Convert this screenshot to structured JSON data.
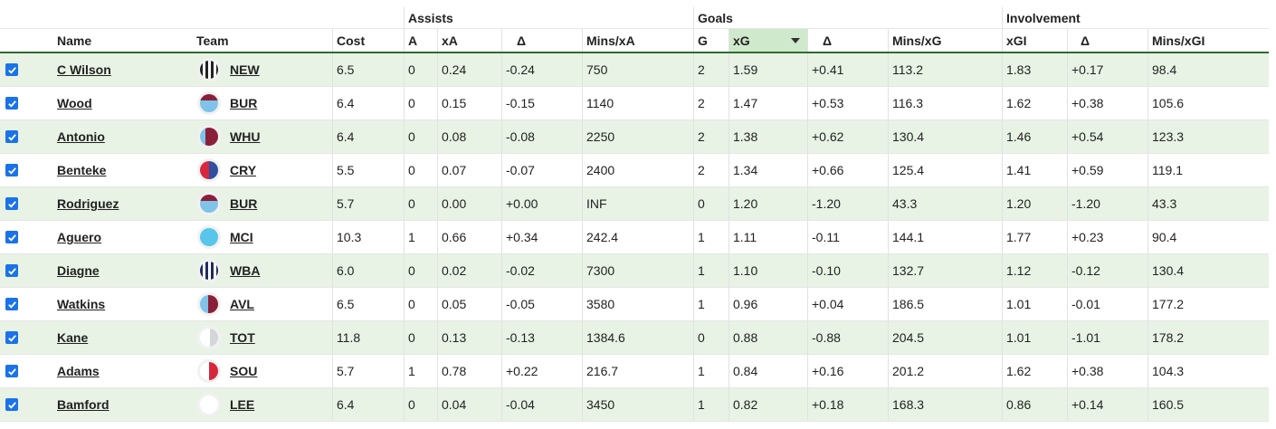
{
  "group_headers": {
    "assists": "Assists",
    "goals": "Goals",
    "involvement": "Involvement"
  },
  "columns": {
    "name": "Name",
    "team": "Team",
    "cost": "Cost",
    "a": "A",
    "xa": "xA",
    "delta_a": "Δ",
    "mins_xa": "Mins/xA",
    "g": "G",
    "xg": "xG",
    "delta_g": "Δ",
    "mins_xg": "Mins/xG",
    "xgi": "xGI",
    "delta_i": "Δ",
    "mins_xgi": "Mins/xGI"
  },
  "sorted_column": "xG",
  "colors": {
    "row_shade": "#e8f3e5",
    "sorted_header": "#cfe9cc",
    "checkbox": "#1a73e8",
    "header_rule": "#2f6b2f"
  },
  "rows": [
    {
      "checked": true,
      "name": "C Wilson",
      "team": "NEW",
      "badge_icon": "newcastle-stripes-icon",
      "cost": "6.5",
      "a": "0",
      "xa": "0.24",
      "delta_a": "-0.24",
      "mins_xa": "750",
      "g": "2",
      "xg": "1.59",
      "delta_g": "+0.41",
      "mins_xg": "113.2",
      "xgi": "1.83",
      "delta_i": "+0.17",
      "mins_xgi": "98.4"
    },
    {
      "checked": true,
      "name": "Wood",
      "team": "BUR",
      "badge_icon": "burnley-icon",
      "cost": "6.4",
      "a": "0",
      "xa": "0.15",
      "delta_a": "-0.15",
      "mins_xa": "1140",
      "g": "2",
      "xg": "1.47",
      "delta_g": "+0.53",
      "mins_xg": "116.3",
      "xgi": "1.62",
      "delta_i": "+0.38",
      "mins_xgi": "105.6"
    },
    {
      "checked": true,
      "name": "Antonio",
      "team": "WHU",
      "badge_icon": "west-ham-icon",
      "cost": "6.4",
      "a": "0",
      "xa": "0.08",
      "delta_a": "-0.08",
      "mins_xa": "2250",
      "g": "2",
      "xg": "1.38",
      "delta_g": "+0.62",
      "mins_xg": "130.4",
      "xgi": "1.46",
      "delta_i": "+0.54",
      "mins_xgi": "123.3"
    },
    {
      "checked": true,
      "name": "Benteke",
      "team": "CRY",
      "badge_icon": "crystal-palace-icon",
      "cost": "5.5",
      "a": "0",
      "xa": "0.07",
      "delta_a": "-0.07",
      "mins_xa": "2400",
      "g": "2",
      "xg": "1.34",
      "delta_g": "+0.66",
      "mins_xg": "125.4",
      "xgi": "1.41",
      "delta_i": "+0.59",
      "mins_xgi": "119.1"
    },
    {
      "checked": true,
      "name": "Rodriguez",
      "team": "BUR",
      "badge_icon": "burnley-icon",
      "cost": "5.7",
      "a": "0",
      "xa": "0.00",
      "delta_a": "+0.00",
      "mins_xa": "INF",
      "g": "0",
      "xg": "1.20",
      "delta_g": "-1.20",
      "mins_xg": "43.3",
      "xgi": "1.20",
      "delta_i": "-1.20",
      "mins_xgi": "43.3"
    },
    {
      "checked": true,
      "name": "Aguero",
      "team": "MCI",
      "badge_icon": "man-city-icon",
      "cost": "10.3",
      "a": "1",
      "xa": "0.66",
      "delta_a": "+0.34",
      "mins_xa": "242.4",
      "g": "1",
      "xg": "1.11",
      "delta_g": "-0.11",
      "mins_xg": "144.1",
      "xgi": "1.77",
      "delta_i": "+0.23",
      "mins_xgi": "90.4"
    },
    {
      "checked": true,
      "name": "Diagne",
      "team": "WBA",
      "badge_icon": "west-brom-stripes-icon",
      "cost": "6.0",
      "a": "0",
      "xa": "0.02",
      "delta_a": "-0.02",
      "mins_xa": "7300",
      "g": "1",
      "xg": "1.10",
      "delta_g": "-0.10",
      "mins_xg": "132.7",
      "xgi": "1.12",
      "delta_i": "-0.12",
      "mins_xgi": "130.4"
    },
    {
      "checked": true,
      "name": "Watkins",
      "team": "AVL",
      "badge_icon": "aston-villa-icon",
      "cost": "6.5",
      "a": "0",
      "xa": "0.05",
      "delta_a": "-0.05",
      "mins_xa": "3580",
      "g": "1",
      "xg": "0.96",
      "delta_g": "+0.04",
      "mins_xg": "186.5",
      "xgi": "1.01",
      "delta_i": "-0.01",
      "mins_xgi": "177.2"
    },
    {
      "checked": true,
      "name": "Kane",
      "team": "TOT",
      "badge_icon": "tottenham-icon",
      "cost": "11.8",
      "a": "0",
      "xa": "0.13",
      "delta_a": "-0.13",
      "mins_xa": "1384.6",
      "g": "0",
      "xg": "0.88",
      "delta_g": "-0.88",
      "mins_xg": "204.5",
      "xgi": "1.01",
      "delta_i": "-1.01",
      "mins_xgi": "178.2"
    },
    {
      "checked": true,
      "name": "Adams",
      "team": "SOU",
      "badge_icon": "southampton-icon",
      "cost": "5.7",
      "a": "1",
      "xa": "0.78",
      "delta_a": "+0.22",
      "mins_xa": "216.7",
      "g": "1",
      "xg": "0.84",
      "delta_g": "+0.16",
      "mins_xg": "201.2",
      "xgi": "1.62",
      "delta_i": "+0.38",
      "mins_xgi": "104.3"
    },
    {
      "checked": true,
      "name": "Bamford",
      "team": "LEE",
      "badge_icon": "leeds-icon",
      "cost": "6.4",
      "a": "0",
      "xa": "0.04",
      "delta_a": "-0.04",
      "mins_xa": "3450",
      "g": "1",
      "xg": "0.82",
      "delta_g": "+0.18",
      "mins_xg": "168.3",
      "xgi": "0.86",
      "delta_i": "+0.14",
      "mins_xgi": "160.5"
    }
  ]
}
